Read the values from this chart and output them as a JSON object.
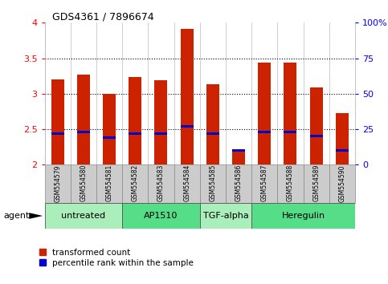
{
  "title": "GDS4361 / 7896674",
  "samples": [
    "GSM554579",
    "GSM554580",
    "GSM554581",
    "GSM554582",
    "GSM554583",
    "GSM554584",
    "GSM554585",
    "GSM554586",
    "GSM554587",
    "GSM554588",
    "GSM554589",
    "GSM554590"
  ],
  "transformed_counts": [
    3.2,
    3.27,
    3.0,
    3.23,
    3.19,
    3.91,
    3.13,
    2.19,
    3.44,
    3.44,
    3.09,
    2.73
  ],
  "percentile_ranks": [
    22,
    23,
    19,
    22,
    22,
    27,
    22,
    10,
    23,
    23,
    20,
    10
  ],
  "ymin": 2.0,
  "ymax": 4.0,
  "yticks": [
    2.0,
    2.5,
    3.0,
    3.5,
    4.0
  ],
  "y2ticks": [
    0,
    25,
    50,
    75,
    100
  ],
  "y2labels": [
    "0",
    "25",
    "50",
    "75",
    "100%"
  ],
  "bar_color": "#cc2200",
  "percentile_color": "#0000cc",
  "agents": [
    {
      "label": "untreated",
      "start": 0,
      "end": 3,
      "color": "#aaeebb"
    },
    {
      "label": "AP1510",
      "start": 3,
      "end": 6,
      "color": "#55dd88"
    },
    {
      "label": "TGF-alpha",
      "start": 6,
      "end": 8,
      "color": "#aaeebb"
    },
    {
      "label": "Heregulin",
      "start": 8,
      "end": 12,
      "color": "#55dd88"
    }
  ],
  "legend_red_label": "transformed count",
  "legend_blue_label": "percentile rank within the sample",
  "xlabel_agent": "agent"
}
